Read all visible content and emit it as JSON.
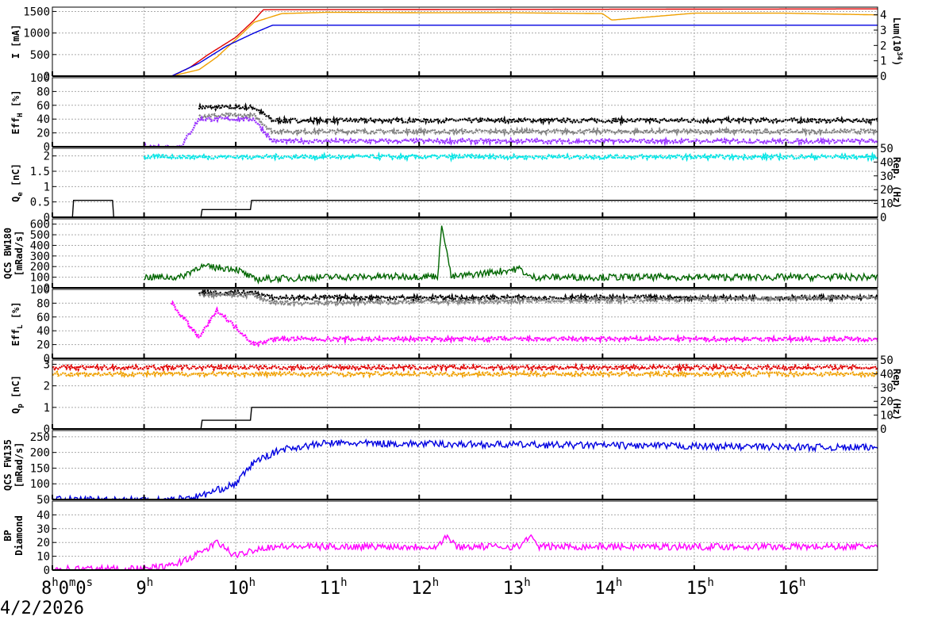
{
  "date": "4/2/2026",
  "colors": {
    "red": "#e00000",
    "orange": "#f0a000",
    "blue": "#0000e0",
    "black": "#000000",
    "gray": "#808080",
    "purple": "#9933ff",
    "cyan": "#00e6e6",
    "green": "#006600",
    "magenta": "#ff00ff"
  },
  "x_axis": {
    "ticks": [
      {
        "x": 8,
        "h": "8",
        "sup": "h",
        "rest": "0",
        "sup2": "m",
        "rest2": "0",
        "sup3": "s"
      },
      {
        "x": 9,
        "h": "9",
        "sup": "h"
      },
      {
        "x": 10,
        "h": "10",
        "sup": "h"
      },
      {
        "x": 11,
        "h": "11",
        "sup": "h"
      },
      {
        "x": 12,
        "h": "12",
        "sup": "h"
      },
      {
        "x": 13,
        "h": "13",
        "sup": "h"
      },
      {
        "x": 14,
        "h": "14",
        "sup": "h"
      },
      {
        "x": 15,
        "h": "15",
        "sup": "h"
      },
      {
        "x": 16,
        "h": "16",
        "sup": "h"
      }
    ],
    "xlim": [
      8.0,
      17.0
    ]
  },
  "chart_data": [
    {
      "type": "line",
      "ylabel": "I [mA]",
      "ylabel_right": "Lum(10",
      "ylabel_right_sup": "34",
      "ylabel_right_tail": ")",
      "ylim": [
        0,
        1600
      ],
      "yticks": [
        0,
        500,
        1000,
        1500
      ],
      "ylim_right": [
        0,
        4.5
      ],
      "yticks_right": [
        0,
        1,
        2,
        3,
        4
      ],
      "series": [
        {
          "color": "#e00000",
          "x": [
            8.0,
            9.3,
            9.5,
            9.7,
            10.0,
            10.2,
            10.3,
            17.0
          ],
          "y": [
            0,
            0,
            200,
            500,
            900,
            1300,
            1540,
            1560
          ]
        },
        {
          "color": "#f0a000",
          "x": [
            8.0,
            9.3,
            9.6,
            9.8,
            10.0,
            10.2,
            10.5,
            11.0,
            12.0,
            13.0,
            14.0,
            14.1,
            15.0,
            16.0,
            17.0
          ],
          "y": [
            0,
            0,
            150,
            450,
            850,
            1250,
            1450,
            1480,
            1470,
            1470,
            1450,
            1300,
            1460,
            1460,
            1420
          ]
        },
        {
          "color": "#0000e0",
          "x": [
            8.0,
            9.3,
            9.6,
            9.9,
            10.2,
            10.4,
            17.0
          ],
          "y": [
            0,
            0,
            300,
            700,
            1000,
            1180,
            1180
          ]
        }
      ]
    },
    {
      "type": "scatter",
      "ylabel": "Eff",
      "ylabel_sub": "H",
      "ylabel_tail": " [%]",
      "ylim": [
        0,
        100
      ],
      "yticks": [
        0,
        20,
        40,
        60,
        80,
        100
      ],
      "series": [
        {
          "color": "#000000",
          "x": [
            9.6,
            10.2,
            10.4,
            17.0
          ],
          "y": [
            57,
            57,
            38,
            38
          ]
        },
        {
          "color": "#808080",
          "x": [
            9.6,
            10.2,
            10.4,
            17.0
          ],
          "y": [
            45,
            45,
            22,
            22
          ]
        },
        {
          "color": "#9933ff",
          "x": [
            9.0,
            9.4,
            9.6,
            10.2,
            10.4,
            17.0
          ],
          "y": [
            0,
            0,
            40,
            40,
            8,
            8
          ]
        }
      ]
    },
    {
      "type": "scatter",
      "ylabel": "Q",
      "ylabel_sub": "e",
      "ylabel_tail": " [nC]",
      "ylabel_right": "Rep. (Hz)",
      "ylim": [
        0,
        2.25
      ],
      "yticks": [
        0,
        0.5,
        1,
        1.5,
        2
      ],
      "ylim_right": [
        0,
        50
      ],
      "yticks_right": [
        0,
        10,
        20,
        30,
        40,
        50
      ],
      "series": [
        {
          "color": "#00e6e6",
          "x": [
            9.0,
            17.0
          ],
          "y": [
            1.97,
            1.97
          ]
        },
        {
          "color": "#000000",
          "x": [
            8.0,
            8.22,
            8.22,
            8.66,
            8.66,
            9.63,
            9.63,
            10.17,
            10.17,
            17.0
          ],
          "y": [
            0,
            0,
            0.55,
            0.55,
            0,
            0,
            0.25,
            0.25,
            0.55,
            0.55
          ]
        }
      ]
    },
    {
      "type": "line",
      "ylabel": "QCS BW180",
      "ylabel2": "[mRad/s]",
      "ylim": [
        0,
        650
      ],
      "yticks": [
        0,
        100,
        200,
        300,
        400,
        500,
        600
      ],
      "series": [
        {
          "color": "#006600",
          "x": [
            9.0,
            9.4,
            9.6,
            10.0,
            10.2,
            11.0,
            12.2,
            12.25,
            12.35,
            13.1,
            13.2,
            17.0
          ],
          "y": [
            100,
            100,
            200,
            180,
            80,
            100,
            110,
            600,
            100,
            180,
            100,
            100
          ]
        }
      ]
    },
    {
      "type": "scatter",
      "ylabel": "Eff",
      "ylabel_sub": "L",
      "ylabel_tail": " [%]",
      "ylim": [
        0,
        100
      ],
      "yticks": [
        0,
        20,
        40,
        60,
        80,
        100
      ],
      "series": [
        {
          "color": "#000000",
          "x": [
            9.6,
            10.2,
            10.4,
            17.0
          ],
          "y": [
            95,
            95,
            88,
            88
          ]
        },
        {
          "color": "#808080",
          "x": [
            9.6,
            10.2,
            10.4,
            17.0
          ],
          "y": [
            92,
            92,
            80,
            88
          ]
        },
        {
          "color": "#ff00ff",
          "x": [
            9.3,
            9.6,
            9.8,
            10.2,
            10.4,
            17.0
          ],
          "y": [
            80,
            30,
            70,
            20,
            28,
            28
          ]
        }
      ]
    },
    {
      "type": "scatter",
      "ylabel": "Q",
      "ylabel_sub": "p",
      "ylabel_tail": " [nC]",
      "ylabel_right": "Rep. (Hz)",
      "ylim": [
        0,
        3.2
      ],
      "yticks": [
        0,
        1,
        2,
        3
      ],
      "ylim_right": [
        0,
        50
      ],
      "yticks_right": [
        0,
        10,
        20,
        30,
        40,
        50
      ],
      "series": [
        {
          "color": "#e00000",
          "x": [
            8.0,
            17.0
          ],
          "y": [
            2.85,
            2.85
          ]
        },
        {
          "color": "#f0a000",
          "x": [
            8.0,
            17.0
          ],
          "y": [
            2.55,
            2.55
          ]
        },
        {
          "color": "#000000",
          "x": [
            8.0,
            9.63,
            9.63,
            10.17,
            10.17,
            17.0
          ],
          "y": [
            0,
            0,
            0.4,
            0.4,
            1.0,
            1.0
          ]
        }
      ]
    },
    {
      "type": "line",
      "ylabel": "QCS FW135",
      "ylabel2": "[mRad/s]",
      "ylim": [
        50,
        270
      ],
      "yticks": [
        50,
        100,
        150,
        200,
        250
      ],
      "series": [
        {
          "color": "#0000e0",
          "x": [
            8.0,
            9.3,
            9.6,
            10.0,
            10.2,
            10.5,
            11.0,
            17.0
          ],
          "y": [
            50,
            50,
            60,
            100,
            170,
            210,
            230,
            215
          ]
        }
      ]
    },
    {
      "type": "line",
      "ylabel": "BP",
      "ylabel2": "Diamond",
      "ylim": [
        0,
        50
      ],
      "yticks": [
        0,
        10,
        20,
        30,
        40
      ],
      "series": [
        {
          "color": "#ff00ff",
          "x": [
            8.0,
            9.0,
            9.3,
            9.6,
            9.8,
            10.0,
            10.2,
            10.4,
            12.2,
            12.3,
            12.4,
            13.1,
            13.2,
            13.3,
            17.0
          ],
          "y": [
            1,
            1,
            3,
            12,
            20,
            10,
            15,
            17,
            17,
            25,
            17,
            17,
            25,
            17,
            17
          ]
        }
      ]
    }
  ]
}
